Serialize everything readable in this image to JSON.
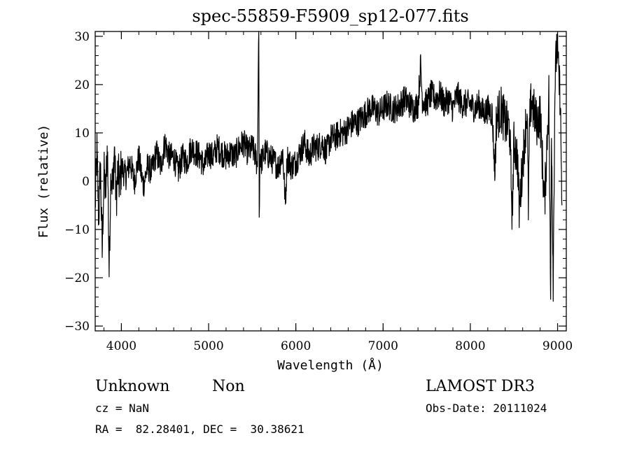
{
  "chart_data": {
    "type": "line",
    "title": "spec-55859-F5909_sp12-077.fits",
    "xlabel": "Wavelength (Å)",
    "ylabel": "Flux (relative)",
    "xlim": [
      3700,
      9100
    ],
    "ylim": [
      -31,
      31
    ],
    "x_ticks": [
      4000,
      5000,
      6000,
      7000,
      8000,
      9000
    ],
    "x_tick_labels": [
      "4000",
      "5000",
      "6000",
      "7000",
      "8000",
      "9000"
    ],
    "y_ticks": [
      -30,
      -20,
      -10,
      0,
      10,
      20,
      30
    ],
    "y_tick_labels": [
      "−30",
      "−20",
      "−10",
      "0",
      "10",
      "20",
      "30"
    ],
    "x_minor_step": 200,
    "y_minor_step": 2,
    "series": [
      {
        "name": "flux",
        "x": [
          3700,
          3720,
          3740,
          3760,
          3780,
          3800,
          3820,
          3840,
          3860,
          3880,
          3900,
          3920,
          3940,
          3960,
          3980,
          4000,
          4050,
          4100,
          4150,
          4200,
          4250,
          4300,
          4350,
          4400,
          4450,
          4500,
          4550,
          4600,
          4650,
          4700,
          4750,
          4800,
          4850,
          4900,
          4950,
          5000,
          5050,
          5100,
          5150,
          5200,
          5250,
          5300,
          5350,
          5400,
          5450,
          5500,
          5540,
          5560,
          5575,
          5580,
          5590,
          5600,
          5650,
          5700,
          5750,
          5800,
          5850,
          5880,
          5900,
          5950,
          6000,
          6050,
          6100,
          6150,
          6200,
          6250,
          6300,
          6350,
          6400,
          6450,
          6500,
          6550,
          6600,
          6650,
          6700,
          6750,
          6800,
          6850,
          6900,
          6950,
          7000,
          7050,
          7100,
          7150,
          7200,
          7250,
          7300,
          7350,
          7400,
          7430,
          7450,
          7500,
          7550,
          7600,
          7650,
          7700,
          7750,
          7800,
          7850,
          7900,
          7950,
          8000,
          8050,
          8100,
          8150,
          8200,
          8250,
          8280,
          8300,
          8350,
          8400,
          8450,
          8480,
          8500,
          8540,
          8560,
          8600,
          8650,
          8665,
          8680,
          8700,
          8720,
          8760,
          8800,
          8850,
          8900,
          8920,
          8930,
          8950,
          8970,
          8990,
          9000,
          9010,
          9030,
          9050
        ],
        "y": [
          -5,
          6,
          -8,
          4,
          -15,
          2,
          -3,
          8,
          -19,
          3,
          -2,
          7,
          -4,
          2,
          -1,
          3,
          1,
          4,
          0,
          5,
          -1,
          3,
          2,
          6,
          3,
          8,
          5,
          5,
          2,
          5,
          4,
          7,
          6,
          5,
          3,
          6,
          5,
          7,
          6,
          5,
          6,
          5,
          7,
          8,
          6,
          7,
          5,
          3,
          35,
          -7,
          6,
          4,
          6,
          5,
          4,
          3,
          6,
          -5,
          5,
          3,
          4,
          6,
          8,
          5,
          7,
          7,
          8,
          6,
          9,
          9,
          10,
          10,
          11,
          12,
          12,
          13,
          14,
          15,
          15,
          14,
          15,
          16,
          15,
          15,
          16,
          17,
          16,
          15,
          16,
          24,
          17,
          16,
          18,
          17,
          18,
          16,
          17,
          15,
          18,
          16,
          16,
          16,
          15,
          16,
          14,
          15,
          14,
          2,
          13,
          15,
          12,
          11,
          -7,
          8,
          5,
          -6,
          4,
          15,
          -5,
          12,
          17,
          15,
          12,
          14,
          -5,
          18,
          -25,
          12,
          -20,
          20,
          28,
          26,
          22,
          18,
          -5
        ]
      }
    ]
  },
  "info": {
    "object_class": "Unknown",
    "subclass": "Non",
    "cz": "cz = NaN",
    "coords": "RA =  82.28401, DEC =  30.38621",
    "survey": "LAMOST DR3",
    "obs_date": "Obs-Date: 20111024"
  }
}
